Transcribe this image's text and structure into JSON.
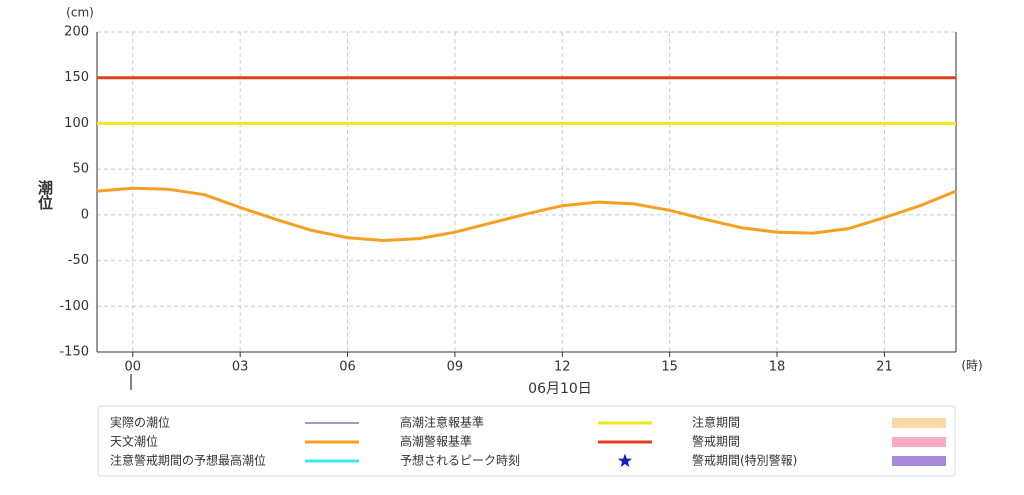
{
  "chart_data": {
    "type": "line",
    "y_unit": "(cm)",
    "x_unit": "(時)",
    "y_label": "潮位",
    "date_label": "06月10日",
    "x": [
      -1,
      0,
      1,
      2,
      3,
      4,
      5,
      6,
      7,
      8,
      9,
      10,
      11,
      12,
      13,
      14,
      15,
      16,
      17,
      18,
      19,
      20,
      21,
      22,
      23
    ],
    "series": [
      {
        "color": "#f5a023",
        "values": [
          26,
          29,
          28,
          22,
          8,
          -5,
          -17,
          -25,
          -28,
          -26,
          -19,
          -9,
          1,
          10,
          14,
          12,
          5,
          -5,
          -14,
          -19,
          -20,
          -15,
          -3,
          10,
          26
        ]
      }
    ],
    "reference_lines": [
      {
        "value": 100,
        "color": "#f2e623"
      },
      {
        "value": 150,
        "color": "#e0401c"
      }
    ],
    "xlim": [
      -1,
      23
    ],
    "xticks": [
      {
        "value": 0,
        "label": "00"
      },
      {
        "value": 3,
        "label": "03"
      },
      {
        "value": 6,
        "label": "06"
      },
      {
        "value": 9,
        "label": "09"
      },
      {
        "value": 12,
        "label": "12"
      },
      {
        "value": 15,
        "label": "15"
      },
      {
        "value": 18,
        "label": "18"
      },
      {
        "value": 21,
        "label": "21"
      }
    ],
    "ylim": [
      -150,
      200
    ],
    "yticks": [
      -150,
      -100,
      -50,
      0,
      50,
      100,
      150,
      200
    ],
    "grid": true,
    "legend": [
      {
        "name": "実際の潮位",
        "symbol": "line",
        "color": "#3a3a7a"
      },
      {
        "name": "天文潮位",
        "symbol": "line",
        "color": "#f5a023"
      },
      {
        "name": "注意警戒期間の予想最高潮位",
        "symbol": "line",
        "color": "#3ee8ee"
      },
      {
        "name": "高潮注意報基準",
        "symbol": "line",
        "color": "#f2e623"
      },
      {
        "name": "高潮警報基準",
        "symbol": "line",
        "color": "#e0401c"
      },
      {
        "name": "予想されるピーク時刻",
        "symbol": "star",
        "color": "#1020c0"
      },
      {
        "name": "注意期間",
        "symbol": "rect",
        "color": "#fad9a8"
      },
      {
        "name": "警戒期間",
        "symbol": "rect",
        "color": "#f7a9c6"
      },
      {
        "name": "警戒期間(特別警報)",
        "symbol": "rect",
        "color": "#a98ad8"
      }
    ]
  }
}
